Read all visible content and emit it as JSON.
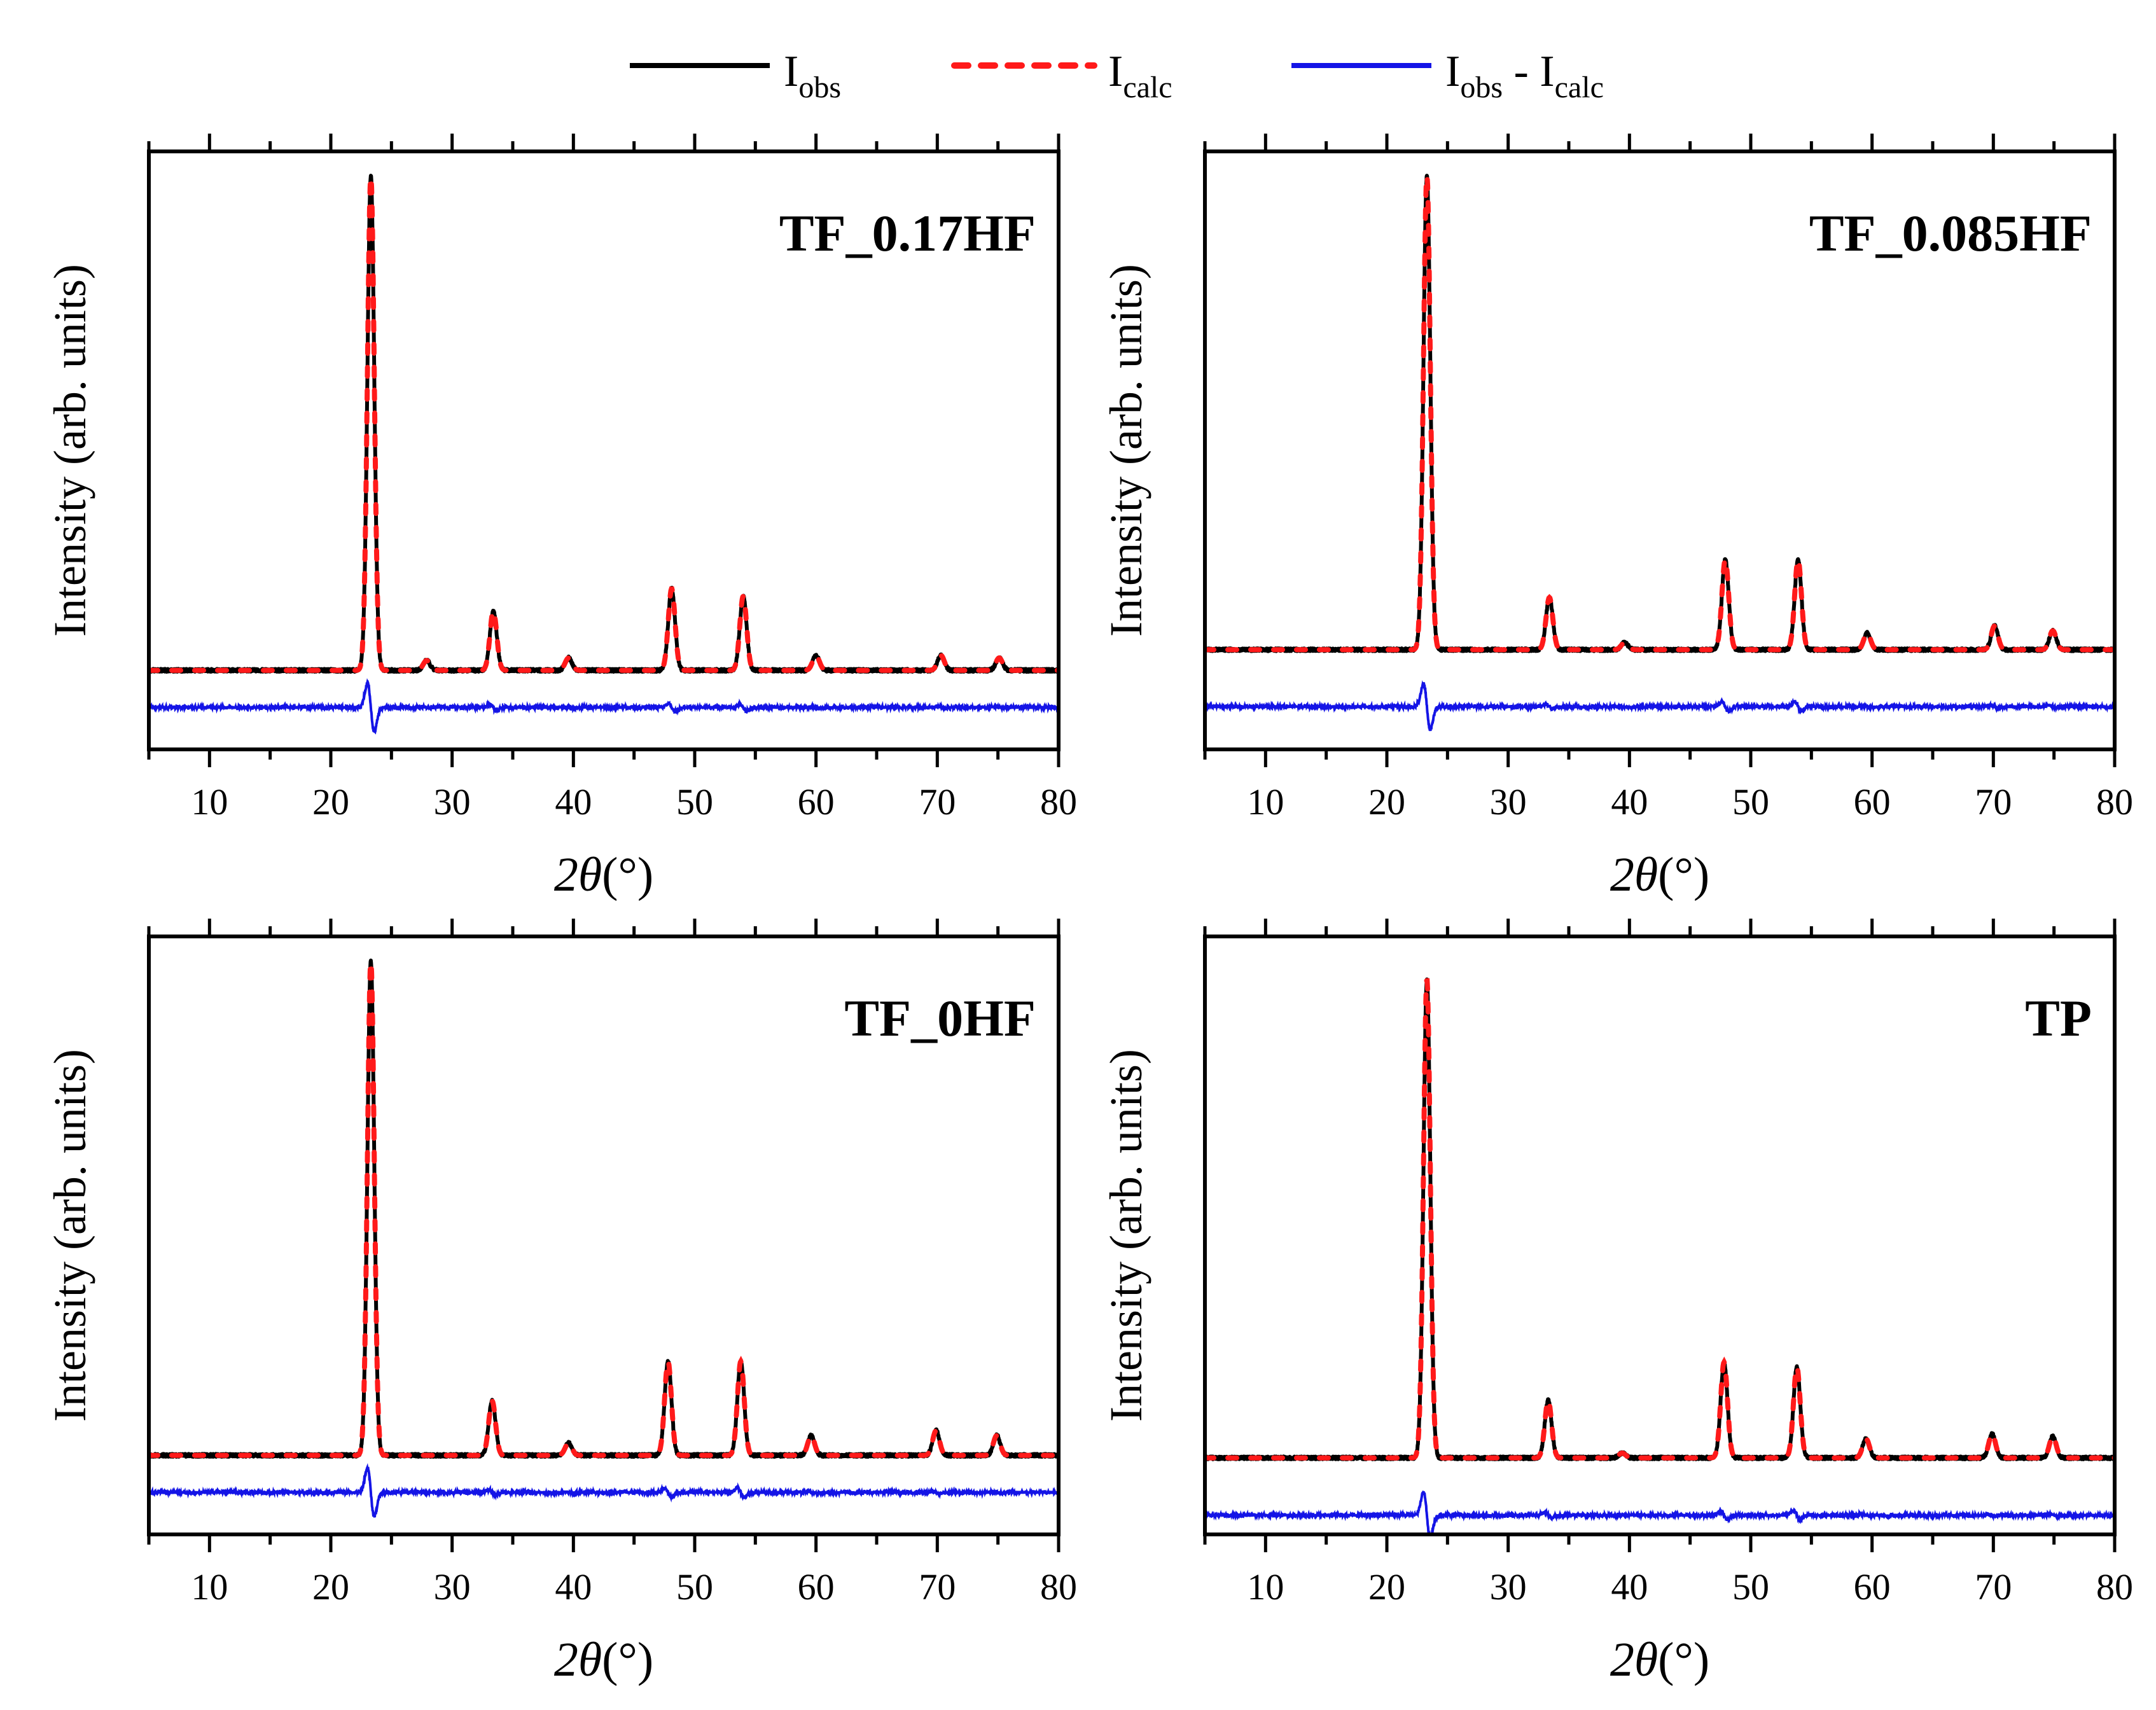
{
  "legend": {
    "entries": [
      {
        "name": "I",
        "sub": "obs",
        "suffix": "",
        "color": "#000000",
        "style": "solid"
      },
      {
        "name": "I",
        "sub": "calc",
        "suffix": "",
        "color": "#ff1a1a",
        "style": "dotted"
      },
      {
        "name": "I",
        "sub": "obs",
        "suffix": " - I",
        "sub2": "calc",
        "color": "#1414e6",
        "style": "solid"
      }
    ]
  },
  "colors": {
    "obs": "#000000",
    "calc": "#ff1a1a",
    "diff": "#1414e6",
    "axis": "#000000"
  },
  "chart_data": [
    {
      "type": "line",
      "title": "TF_0.17HF",
      "xlabel": "2θ (°)",
      "ylabel": "Intensity (arb. units)",
      "xlim": [
        5,
        80
      ],
      "ylim": [
        -0.16,
        1.05
      ],
      "xticks": [
        10,
        20,
        30,
        40,
        50,
        60,
        70,
        80
      ],
      "baseline": 0.0,
      "diff_offset": -0.075,
      "peaks": [
        {
          "x": 23.3,
          "y": 1.0
        },
        {
          "x": 27.9,
          "y": 0.02
        },
        {
          "x": 33.4,
          "y": 0.12
        },
        {
          "x": 39.6,
          "y": 0.025
        },
        {
          "x": 48.1,
          "y": 0.165
        },
        {
          "x": 54.0,
          "y": 0.15
        },
        {
          "x": 60.0,
          "y": 0.03
        },
        {
          "x": 70.3,
          "y": 0.03
        },
        {
          "x": 75.1,
          "y": 0.025
        }
      ],
      "series": [
        {
          "name": "Iobs",
          "color": "#000000"
        },
        {
          "name": "Icalc",
          "color": "#ff1a1a"
        },
        {
          "name": "Iobs - Icalc",
          "color": "#1414e6"
        }
      ]
    },
    {
      "type": "line",
      "title": "TF_0.085HF",
      "xlabel": "2θ (°)",
      "ylabel": "Intensity (arb. units)",
      "xlim": [
        5,
        80
      ],
      "ylim": [
        -0.21,
        1.05
      ],
      "xticks": [
        10,
        20,
        30,
        40,
        50,
        60,
        70,
        80
      ],
      "baseline": 0.0,
      "diff_offset": -0.12,
      "peaks": [
        {
          "x": 23.3,
          "y": 1.0
        },
        {
          "x": 33.4,
          "y": 0.11
        },
        {
          "x": 39.6,
          "y": 0.015
        },
        {
          "x": 47.9,
          "y": 0.19
        },
        {
          "x": 53.9,
          "y": 0.19
        },
        {
          "x": 59.6,
          "y": 0.035
        },
        {
          "x": 70.1,
          "y": 0.05
        },
        {
          "x": 74.9,
          "y": 0.04
        }
      ],
      "series": [
        {
          "name": "Iobs",
          "color": "#000000"
        },
        {
          "name": "Icalc",
          "color": "#ff1a1a"
        },
        {
          "name": "Iobs - Icalc",
          "color": "#1414e6"
        }
      ]
    },
    {
      "type": "line",
      "title": "TF_0HF",
      "xlabel": "2θ (°)",
      "ylabel": "Intensity (arb. units)",
      "xlim": [
        5,
        80
      ],
      "ylim": [
        -0.16,
        1.05
      ],
      "xticks": [
        10,
        20,
        30,
        40,
        50,
        60,
        70,
        80
      ],
      "baseline": 0.0,
      "diff_offset": -0.075,
      "peaks": [
        {
          "x": 23.3,
          "y": 1.0
        },
        {
          "x": 33.3,
          "y": 0.11
        },
        {
          "x": 39.6,
          "y": 0.025
        },
        {
          "x": 47.8,
          "y": 0.19
        },
        {
          "x": 53.8,
          "y": 0.19
        },
        {
          "x": 59.6,
          "y": 0.04
        },
        {
          "x": 69.9,
          "y": 0.05
        },
        {
          "x": 74.9,
          "y": 0.04
        }
      ],
      "series": [
        {
          "name": "Iobs",
          "color": "#000000"
        },
        {
          "name": "Icalc",
          "color": "#ff1a1a"
        },
        {
          "name": "Iobs - Icalc",
          "color": "#1414e6"
        }
      ]
    },
    {
      "type": "line",
      "title": "TP",
      "xlabel": "2θ (°)",
      "ylabel": "Intensity (arb. units)",
      "xlim": [
        5,
        80
      ],
      "ylim": [
        -0.16,
        1.09
      ],
      "xticks": [
        10,
        20,
        30,
        40,
        50,
        60,
        70,
        80
      ],
      "baseline": 0.0,
      "diff_offset": -0.12,
      "peaks": [
        {
          "x": 23.3,
          "y": 1.0
        },
        {
          "x": 33.3,
          "y": 0.12
        },
        {
          "x": 39.4,
          "y": 0.01
        },
        {
          "x": 47.8,
          "y": 0.2
        },
        {
          "x": 53.8,
          "y": 0.19
        },
        {
          "x": 59.5,
          "y": 0.04
        },
        {
          "x": 69.9,
          "y": 0.05
        },
        {
          "x": 74.9,
          "y": 0.045
        }
      ],
      "series": [
        {
          "name": "Iobs",
          "color": "#000000"
        },
        {
          "name": "Icalc",
          "color": "#ff1a1a"
        },
        {
          "name": "Iobs - Icalc",
          "color": "#1414e6"
        }
      ]
    }
  ]
}
